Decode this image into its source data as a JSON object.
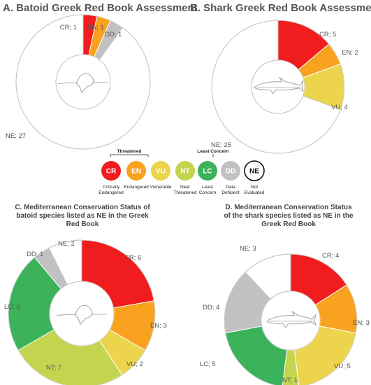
{
  "colors": {
    "CR": "#f11c1e",
    "EN": "#f8a21f",
    "VU": "#ecd44c",
    "NT": "#c5d44f",
    "LC": "#3cb25a",
    "DD": "#c1c1c3",
    "NE": "#ffffff",
    "ring_stroke": "#bdbdbd",
    "silhouette": "#a9a9ad"
  },
  "legend": {
    "groups": {
      "threatened": "Threatened",
      "least_concern": "Least Concern"
    },
    "items": [
      {
        "code": "CR",
        "name1": "Critically",
        "name2": "Endangered"
      },
      {
        "code": "EN",
        "name1": "Endangered",
        "name2": ""
      },
      {
        "code": "VU",
        "name1": "Vulnerable",
        "name2": ""
      },
      {
        "code": "NT",
        "name1": "Near",
        "name2": "Threatened"
      },
      {
        "code": "LC",
        "name1": "Least",
        "name2": "Concern"
      },
      {
        "code": "DD",
        "name1": "Data",
        "name2": "Deficient"
      },
      {
        "code": "NE",
        "name1": "Not",
        "name2": "Evaluated"
      }
    ]
  },
  "chart_data": [
    {
      "type": "pie",
      "title": "A. Batoid Greek Red Book Assessment",
      "subtitle": [],
      "silhouette": "batoid-icon",
      "slices": [
        {
          "category": "CR",
          "value": 1,
          "label": "CR; 1"
        },
        {
          "category": "EN",
          "value": 1,
          "label": "EN; 1"
        },
        {
          "category": "DD",
          "value": 1,
          "label": "DD; 1"
        },
        {
          "category": "NE",
          "value": 27,
          "label": "NE; 27"
        }
      ]
    },
    {
      "type": "pie",
      "title": "B. Shark Greek Red Book Assessment",
      "subtitle": [],
      "silhouette": "shark-icon",
      "slices": [
        {
          "category": "CR",
          "value": 5,
          "label": "CR; 5"
        },
        {
          "category": "EN",
          "value": 2,
          "label": "EN; 2"
        },
        {
          "category": "VU",
          "value": 4,
          "label": "VU; 4"
        },
        {
          "category": "NE",
          "value": 25,
          "label": "NE; 25"
        }
      ]
    },
    {
      "type": "pie",
      "title": "",
      "subtitle": [
        "C. Mediterranean Conservation Status of",
        "batoid species listed as NE in the Greek",
        "Red Book"
      ],
      "silhouette": "batoid-icon",
      "slices": [
        {
          "category": "CR",
          "value": 6,
          "label": "CR; 6"
        },
        {
          "category": "EN",
          "value": 3,
          "label": "EN; 3"
        },
        {
          "category": "VU",
          "value": 2,
          "label": "VU; 2"
        },
        {
          "category": "NT",
          "value": 7,
          "label": "NT; 7"
        },
        {
          "category": "LC",
          "value": 6,
          "label": "LC; 6"
        },
        {
          "category": "DD",
          "value": 1,
          "label": "DD; 1"
        },
        {
          "category": "NE",
          "value": 2,
          "label": "NE; 2"
        }
      ]
    },
    {
      "type": "pie",
      "title": "",
      "subtitle": [
        "D. Mediterranean Conservation Status",
        "of the shark species listed as NE in the",
        "Greek Red Book"
      ],
      "silhouette": "shark-icon",
      "slices": [
        {
          "category": "CR",
          "value": 4,
          "label": "CR; 4"
        },
        {
          "category": "EN",
          "value": 3,
          "label": "EN; 3"
        },
        {
          "category": "VU",
          "value": 5,
          "label": "VU; 5"
        },
        {
          "category": "NT",
          "value": 1,
          "label": "NT; 1"
        },
        {
          "category": "LC",
          "value": 5,
          "label": "LC; 5"
        },
        {
          "category": "DD",
          "value": 4,
          "label": "DD; 4"
        },
        {
          "category": "NE",
          "value": 3,
          "label": "NE; 3"
        }
      ]
    }
  ]
}
